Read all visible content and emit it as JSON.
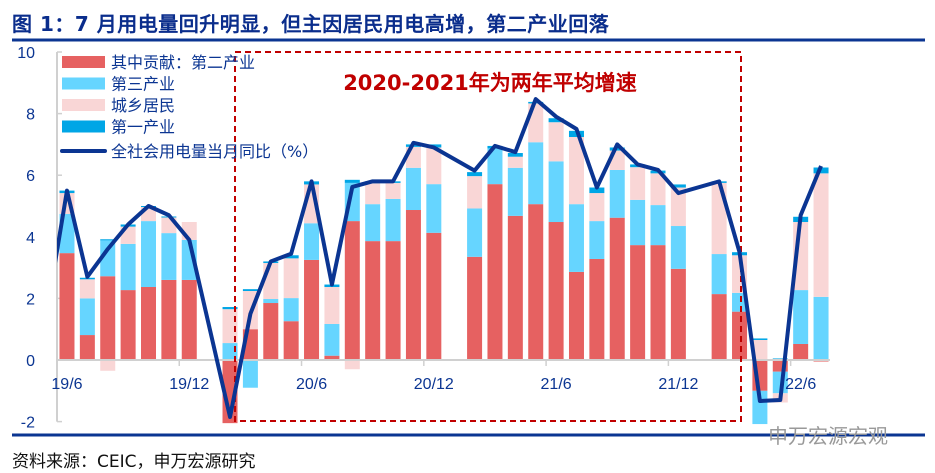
{
  "title": "图 1：7 月用电量回升明显，但主因居民用电高增，第二产业回落",
  "source": "资料来源：CEIC，申万宏源研究",
  "watermark": "申万宏源宏观",
  "colors": {
    "secondary": "#E66161",
    "tertiary": "#66D5FF",
    "residential": "#F9D6D6",
    "primary": "#00A6E6",
    "total": "#0B3592",
    "box": "#C00000"
  },
  "chart_data": {
    "type": "bar",
    "stacked": true,
    "title": "",
    "annotation": "2020-2021年为两年平均增速",
    "xlabel": "",
    "ylabel": "",
    "ylim": [
      -2,
      10
    ],
    "yticks": [
      -2,
      0,
      2,
      4,
      6,
      8,
      10
    ],
    "ytick_labels": [
      "-2",
      "0",
      "2",
      "4",
      "6",
      "8",
      "10"
    ],
    "xtick_labels": [
      {
        "label": "19/6",
        "index": 1
      },
      {
        "label": "19/12",
        "index": 7
      },
      {
        "label": "20/6",
        "index": 13
      },
      {
        "label": "20/12",
        "index": 19
      },
      {
        "label": "21/6",
        "index": 25
      },
      {
        "label": "21/12",
        "index": 31
      },
      {
        "label": "22/6",
        "index": 37
      }
    ],
    "categories": [
      "19/5",
      "19/6",
      "19/7",
      "19/8",
      "19/9",
      "19/10",
      "19/11",
      "19/12",
      "20/1",
      "20/2",
      "20/3",
      "20/4",
      "20/5",
      "20/6",
      "20/7",
      "20/8",
      "20/9",
      "20/10",
      "20/11",
      "20/12",
      "21/1",
      "21/2",
      "21/3",
      "21/4",
      "21/5",
      "21/6",
      "21/7",
      "21/8",
      "21/9",
      "21/10",
      "21/11",
      "21/12",
      "22/1",
      "22/2",
      "22/3",
      "22/4",
      "22/5",
      "22/6",
      "22/7"
    ],
    "legend_position": "top-left",
    "series": [
      {
        "name": "其中贡献：第二产业",
        "type": "bar",
        "color_key": "secondary",
        "values": [
          null,
          3.47,
          0.81,
          2.72,
          2.27,
          2.37,
          2.6,
          2.6,
          null,
          -2.05,
          1.0,
          1.85,
          1.26,
          3.25,
          0.14,
          4.51,
          3.86,
          3.86,
          4.87,
          4.13,
          null,
          3.35,
          5.71,
          4.68,
          5.06,
          4.48,
          2.86,
          3.28,
          4.62,
          3.73,
          3.73,
          2.96,
          null,
          2.14,
          1.57,
          -1.0,
          -0.38,
          0.52,
          -0.05
        ]
      },
      {
        "name": "第三产业",
        "type": "bar",
        "color_key": "tertiary",
        "values": [
          null,
          1.27,
          1.19,
          1.18,
          1.5,
          2.14,
          1.52,
          1.3,
          null,
          0.55,
          -0.9,
          0.13,
          0.75,
          1.19,
          1.03,
          1.24,
          1.2,
          1.37,
          1.37,
          1.58,
          null,
          1.57,
          1.16,
          1.56,
          2.01,
          1.97,
          2.2,
          1.23,
          1.55,
          1.47,
          1.3,
          1.39,
          null,
          1.3,
          0.61,
          -1.08,
          -0.7,
          1.75,
          2.05
        ]
      },
      {
        "name": "城乡居民",
        "type": "bar",
        "color_key": "residential",
        "values": [
          null,
          0.68,
          0.62,
          -0.35,
          0.56,
          0.46,
          0.52,
          0.58,
          null,
          1.1,
          1.24,
          1.17,
          1.29,
          1.26,
          1.2,
          -0.3,
          0.68,
          0.52,
          0.68,
          1.19,
          null,
          1.05,
          0.0,
          0.36,
          1.26,
          1.27,
          2.18,
          0.91,
          0.63,
          1.06,
          1.03,
          1.25,
          null,
          2.31,
          1.22,
          0.65,
          -0.3,
          2.21,
          4.01
        ]
      },
      {
        "name": "第一产业",
        "type": "bar",
        "color_key": "primary",
        "values": [
          null,
          0.08,
          0.05,
          0.02,
          0.07,
          0.03,
          0.02,
          0.0,
          null,
          0.07,
          0.06,
          0.05,
          0.1,
          0.1,
          0.08,
          0.1,
          0.06,
          0.05,
          0.08,
          0.1,
          null,
          0.13,
          0.08,
          0.12,
          0.05,
          0.13,
          0.2,
          0.18,
          0.1,
          0.09,
          0.09,
          0.1,
          null,
          0.05,
          0.1,
          0.05,
          0.05,
          0.17,
          0.19
        ]
      },
      {
        "name": "全社会用电量当月同比（%）",
        "type": "line",
        "color_key": "total",
        "values": [
          1.5,
          5.5,
          2.7,
          3.6,
          4.4,
          5.0,
          4.7,
          3.9,
          null,
          -1.85,
          1.5,
          3.2,
          3.45,
          5.8,
          2.45,
          5.62,
          5.8,
          5.8,
          7.05,
          6.9,
          null,
          6.15,
          6.95,
          6.75,
          8.47,
          7.9,
          7.5,
          5.6,
          7.0,
          6.35,
          6.17,
          5.42,
          null,
          5.8,
          3.5,
          -1.33,
          -1.3,
          4.7,
          6.3
        ]
      }
    ]
  }
}
